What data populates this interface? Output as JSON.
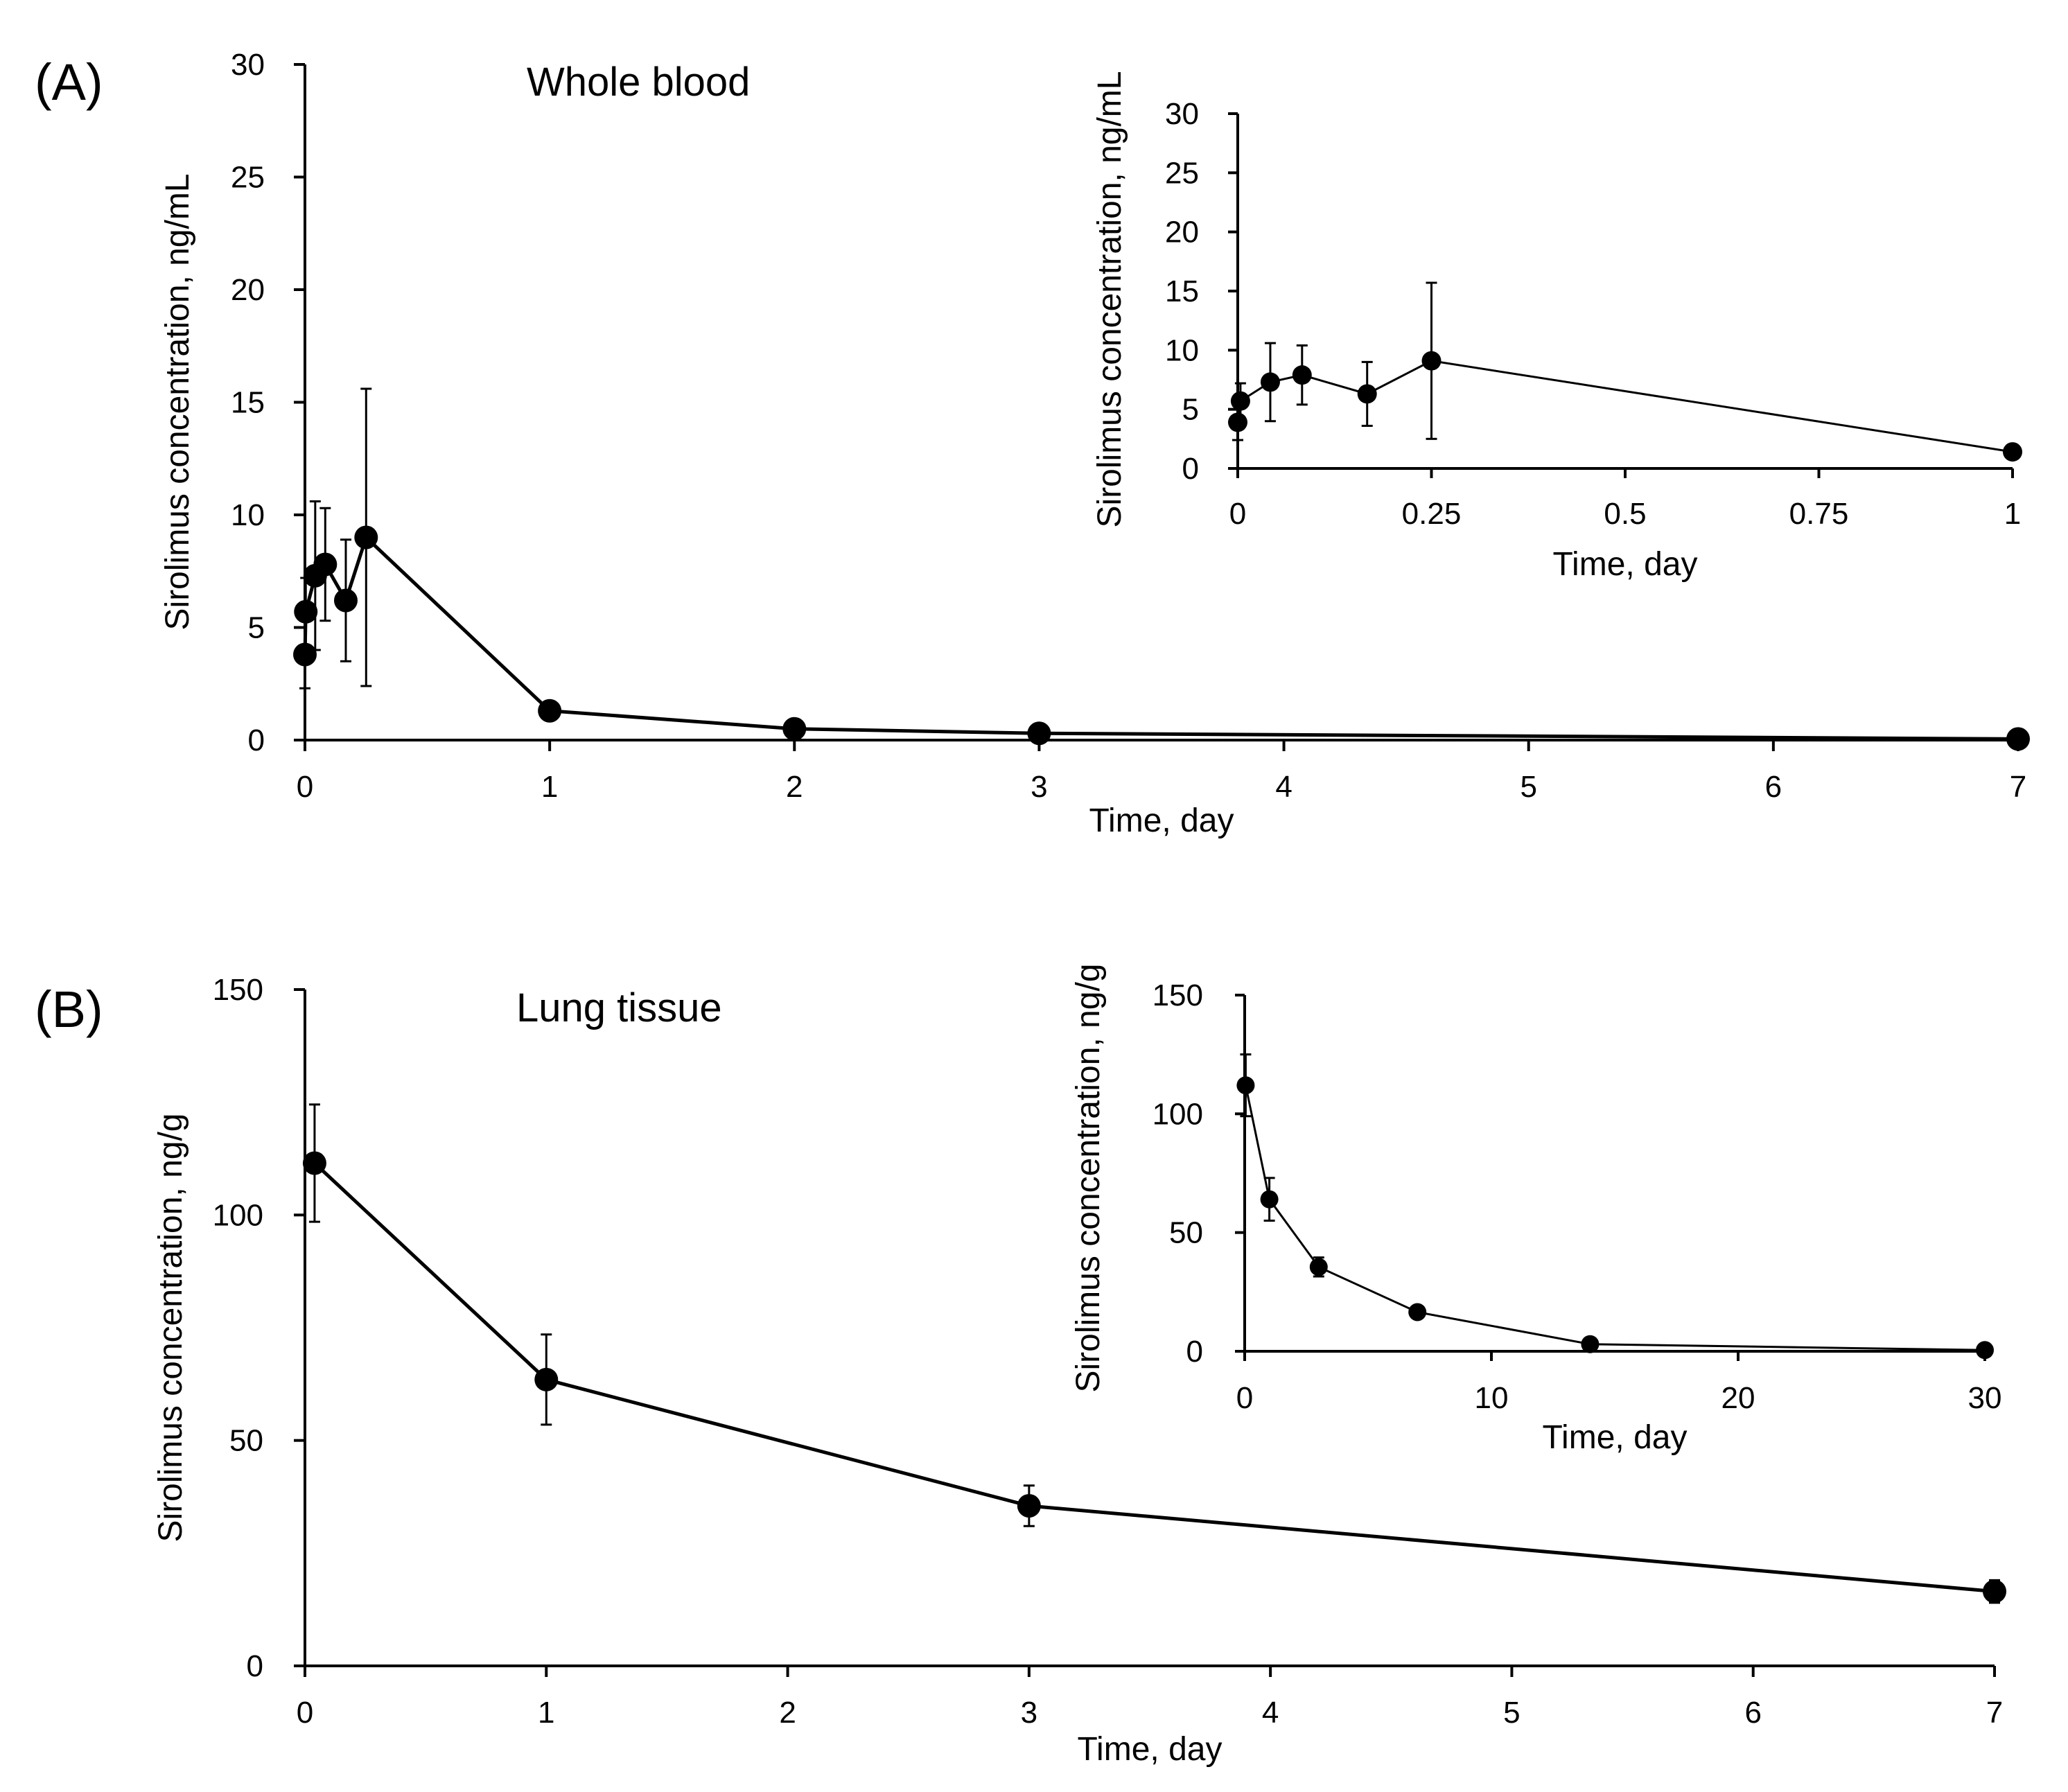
{
  "figure": {
    "panel_labels": [
      "(A)",
      "(B)"
    ]
  },
  "chart_data": [
    {
      "id": "A-main",
      "panel": "(A)",
      "type": "line",
      "title": "Whole blood",
      "xlabel": "Time, day",
      "ylabel": "Sirolimus concentration, ng/mL",
      "xlim": [
        0,
        7
      ],
      "ylim": [
        0,
        30
      ],
      "xticks": [
        0,
        1,
        2,
        3,
        4,
        5,
        6,
        7
      ],
      "yticks": [
        0,
        5,
        10,
        15,
        20,
        25,
        30
      ],
      "grid": false,
      "legend": "none",
      "series": [
        {
          "x": [
            0,
            0.0035,
            0.042,
            0.083,
            0.167,
            0.25,
            1,
            2,
            3,
            7
          ],
          "y": [
            3.8,
            5.7,
            7.3,
            7.8,
            6.2,
            9.0,
            1.3,
            0.5,
            0.3,
            0.05
          ],
          "err": [
            1.5,
            1.5,
            3.3,
            2.5,
            2.7,
            6.6,
            0.3,
            0.2,
            0.1,
            0.05
          ]
        }
      ]
    },
    {
      "id": "A-inset",
      "panel": "(A)",
      "type": "line",
      "title": "",
      "xlabel": "Time, day",
      "ylabel": "Sirolimus concentration, ng/mL",
      "xlim": [
        0,
        1
      ],
      "ylim": [
        0,
        30
      ],
      "xticks": [
        0,
        0.25,
        0.5,
        0.75,
        1
      ],
      "yticks": [
        0,
        5,
        10,
        15,
        20,
        25,
        30
      ],
      "grid": false,
      "legend": "none",
      "series": [
        {
          "x": [
            0,
            0.0035,
            0.042,
            0.083,
            0.167,
            0.25,
            1
          ],
          "y": [
            3.9,
            5.7,
            7.3,
            7.9,
            6.3,
            9.1,
            1.4
          ],
          "err": [
            1.5,
            1.5,
            3.3,
            2.5,
            2.7,
            6.6,
            0.3
          ]
        }
      ]
    },
    {
      "id": "B-main",
      "panel": "(B)",
      "type": "line",
      "title": "Lung tissue",
      "xlabel": "Time, day",
      "ylabel": "Sirolimus concentration, ng/g",
      "xlim": [
        0,
        7
      ],
      "ylim": [
        0,
        150
      ],
      "xticks": [
        0,
        1,
        2,
        3,
        4,
        5,
        6,
        7
      ],
      "yticks": [
        0,
        50,
        100,
        150
      ],
      "grid": false,
      "legend": "none",
      "series": [
        {
          "x": [
            0.04,
            1,
            3,
            7
          ],
          "y": [
            111.5,
            63.5,
            35.5,
            16.5
          ],
          "err": [
            13,
            10,
            4.5,
            2.5
          ]
        }
      ]
    },
    {
      "id": "B-inset",
      "panel": "(B)",
      "type": "line",
      "title": "",
      "xlabel": "Time, day",
      "ylabel": "Sirolimus concentration, ng/g",
      "xlim": [
        0,
        30
      ],
      "ylim": [
        0,
        150
      ],
      "xticks": [
        0,
        10,
        20,
        30
      ],
      "yticks": [
        0,
        50,
        100,
        150
      ],
      "grid": false,
      "legend": "none",
      "series": [
        {
          "x": [
            0.04,
            1,
            3,
            7,
            14,
            30
          ],
          "y": [
            112,
            64,
            35.5,
            16.5,
            3,
            0.5
          ],
          "err": [
            13,
            9,
            4,
            2,
            1,
            0.5
          ]
        }
      ]
    }
  ]
}
